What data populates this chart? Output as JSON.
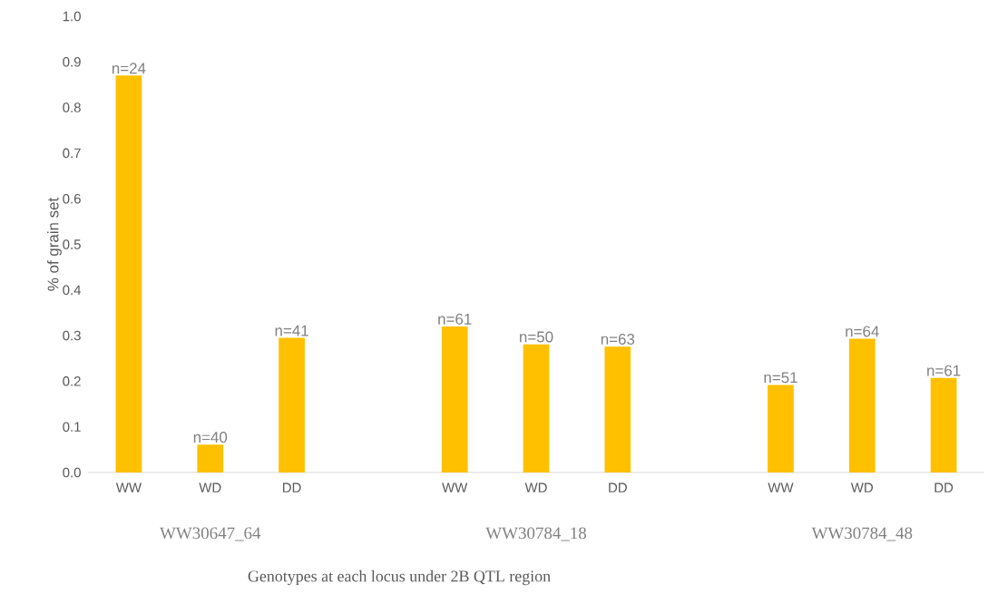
{
  "chart_data": {
    "type": "bar",
    "categories": [
      "WW",
      "WD",
      "DD",
      null,
      "WW",
      "WD",
      "DD",
      null,
      "WW",
      "WD",
      "DD"
    ],
    "values": [
      0.87,
      0.061,
      0.295,
      null,
      0.32,
      0.281,
      0.276,
      null,
      0.192,
      0.293,
      0.207
    ],
    "color": "#ffc000",
    "ylabel": "% of grain set",
    "xlabel": "Genotypes at each locus under 2B QTL region",
    "annotations": [
      "WW30647_64",
      "WW30784_18",
      "WW30784_48",
      {
        "text": "n=24",
        "y": 0.87
      },
      {
        "text": "n=40",
        "y": 0.061
      },
      {
        "text": "n=41",
        "y": 0.295
      },
      {
        "text": "n=61",
        "y": 0.32
      },
      {
        "text": "n=50",
        "y": 0.281
      },
      {
        "text": "n=63",
        "y": 0.276
      },
      {
        "text": "n=51",
        "y": 0.192
      },
      {
        "text": "n=64",
        "y": 0.293
      },
      {
        "text": "n=61",
        "y": 0.207
      }
    ],
    "ylim": [
      0,
      1.0
    ],
    "yticks": [
      {
        "value": 0,
        "label": "0.0"
      },
      0.1,
      0.2,
      0.3,
      0.4,
      0.5,
      0.6,
      0.7,
      0.8,
      0.9,
      {
        "value": 1.0,
        "label": "1.0"
      }
    ]
  }
}
